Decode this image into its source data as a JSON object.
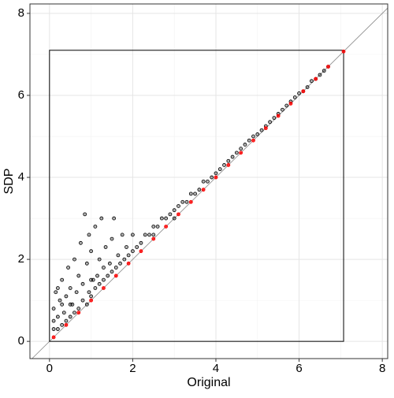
{
  "chart_data": {
    "type": "scatter",
    "xlabel": "Original",
    "ylabel": "SDP",
    "xlim": [
      -0.47,
      8.13
    ],
    "ylim": [
      -0.42,
      8.23
    ],
    "xticks": [
      0,
      2,
      4,
      6,
      8
    ],
    "yticks": [
      0,
      2,
      4,
      6,
      8
    ],
    "x_minor_ticks": [
      1,
      3,
      5,
      7
    ],
    "y_minor_ticks": [
      1,
      3,
      5,
      7
    ],
    "grid": true,
    "identity_line": true,
    "reference_box": {
      "xlim": [
        0,
        7.07
      ],
      "ylim": [
        0,
        7.1
      ]
    },
    "series": [
      {
        "color": "#000000",
        "x": [
          0.1,
          0.1,
          0.15,
          0.2,
          0.2,
          0.25,
          0.3,
          0.3,
          0.35,
          0.4,
          0.4,
          0.45,
          0.5,
          0.5,
          0.55,
          0.6,
          0.6,
          0.65,
          0.7,
          0.7,
          0.75,
          0.8,
          0.8,
          0.85,
          0.9,
          0.9,
          0.95,
          1.0,
          1.0,
          1.05,
          1.1,
          1.1,
          1.15,
          1.2,
          1.2,
          1.25,
          1.3,
          1.35,
          1.4,
          1.45,
          1.5,
          1.5,
          1.6,
          1.65,
          1.7,
          1.75,
          1.8,
          1.85,
          1.9,
          2.0,
          2.0,
          2.1,
          2.2,
          2.3,
          2.4,
          2.5,
          2.6,
          2.7,
          2.8,
          2.9,
          3.0,
          3.1,
          3.2,
          3.3,
          3.4,
          3.5,
          3.6,
          3.7,
          3.8,
          3.9,
          4.0,
          4.1,
          4.2,
          4.3,
          4.4,
          4.5,
          4.6,
          4.7,
          4.8,
          4.9,
          5.0,
          5.1,
          5.2,
          5.3,
          5.4,
          5.5,
          5.6,
          5.7,
          5.8,
          5.9,
          6.0,
          6.1,
          6.2,
          6.3,
          6.4,
          6.5,
          6.6,
          6.7,
          3.0,
          2.5,
          1.0,
          0.3,
          0.2,
          0.5,
          0.1,
          1.3,
          1.55,
          0.95
        ],
        "y": [
          0.5,
          0.8,
          1.2,
          0.3,
          0.6,
          1.0,
          0.4,
          1.5,
          0.7,
          1.1,
          0.5,
          1.8,
          0.6,
          1.3,
          0.9,
          2.0,
          0.7,
          1.2,
          0.8,
          1.6,
          2.4,
          1.0,
          1.4,
          3.1,
          0.9,
          1.9,
          1.2,
          1.1,
          2.2,
          1.5,
          1.3,
          2.8,
          1.6,
          1.4,
          2.0,
          3.0,
          1.5,
          2.3,
          1.6,
          1.9,
          1.7,
          2.5,
          1.8,
          2.1,
          1.9,
          2.6,
          2.0,
          2.3,
          2.1,
          2.2,
          2.6,
          2.3,
          2.4,
          2.6,
          2.6,
          2.8,
          2.8,
          3.0,
          3.0,
          3.1,
          3.2,
          3.3,
          3.4,
          3.4,
          3.6,
          3.6,
          3.7,
          3.9,
          3.9,
          4.0,
          4.1,
          4.2,
          4.3,
          4.4,
          4.5,
          4.6,
          4.7,
          4.8,
          4.9,
          5.0,
          5.05,
          5.15,
          5.25,
          5.35,
          5.45,
          5.55,
          5.65,
          5.75,
          5.85,
          5.95,
          6.05,
          6.1,
          6.2,
          6.35,
          6.4,
          6.5,
          6.6,
          6.7,
          3.0,
          2.6,
          1.5,
          0.9,
          1.3,
          0.9,
          0.3,
          1.8,
          3.0,
          2.6
        ]
      },
      {
        "color": "#ff0000",
        "x": [
          0.1,
          0.4,
          0.7,
          1.0,
          1.3,
          1.6,
          1.9,
          2.2,
          2.5,
          2.8,
          3.1,
          3.4,
          3.7,
          4.0,
          4.3,
          4.6,
          4.9,
          5.2,
          5.5,
          5.8,
          6.1,
          6.4,
          6.7,
          7.07
        ],
        "y": [
          0.1,
          0.4,
          0.7,
          1.0,
          1.3,
          1.6,
          1.9,
          2.2,
          2.5,
          2.8,
          3.1,
          3.4,
          3.7,
          4.0,
          4.3,
          4.6,
          4.9,
          5.2,
          5.5,
          5.8,
          6.1,
          6.4,
          6.7,
          7.07
        ]
      }
    ]
  }
}
